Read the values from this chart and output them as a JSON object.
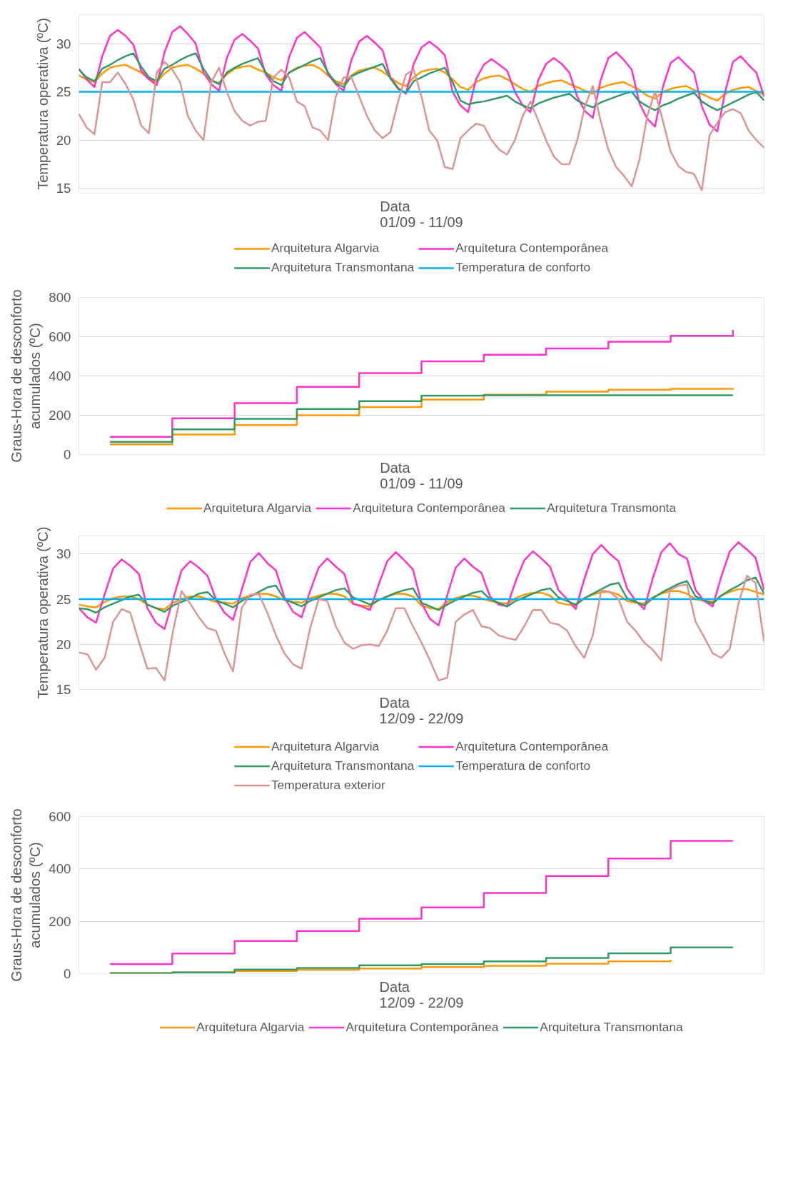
{
  "chart_data": [
    {
      "type": "line",
      "xlabel": "Data\n01/09 - 11/09",
      "ylabel": "Temperatura operativa (ºC)",
      "grid": "y",
      "legend": "bottom",
      "tick_labels": "y",
      "ylim": [
        14.5,
        33
      ],
      "yticks": [
        15,
        20,
        25,
        30
      ],
      "categories": [
        null,
        null,
        null,
        null,
        null,
        null,
        null,
        null,
        null,
        null,
        null,
        null,
        null,
        null,
        null,
        null,
        null,
        null,
        null,
        null,
        null,
        null,
        null,
        null,
        null,
        null,
        null,
        null,
        null,
        null,
        null,
        null,
        null,
        null,
        null,
        null,
        null,
        null,
        null,
        null,
        null,
        null,
        null,
        null,
        null,
        null,
        null,
        null,
        null,
        null,
        null,
        null,
        null,
        null,
        null,
        null,
        null,
        null,
        null,
        null,
        null,
        null,
        null,
        null,
        null,
        null,
        null,
        null,
        null,
        null,
        null,
        null,
        null,
        null,
        null,
        null,
        null,
        null,
        null,
        null,
        null,
        null,
        null,
        null,
        null,
        null,
        null,
        null,
        null
      ],
      "series": [
        {
          "name": "Arquitetura Algarvia",
          "color": "#ff9900",
          "values": [
            26.7,
            26.3,
            26.0,
            26.9,
            27.5,
            27.7,
            27.8,
            27.4,
            27.0,
            26.3,
            26.0,
            26.9,
            27.5,
            27.7,
            27.8,
            27.4,
            26.9,
            26.2,
            25.9,
            26.8,
            27.4,
            27.6,
            27.7,
            27.3,
            27.0,
            26.5,
            26.2,
            27.0,
            27.5,
            27.7,
            27.8,
            27.4,
            26.7,
            26.1,
            25.8,
            26.7,
            27.2,
            27.4,
            27.5,
            27.1,
            26.5,
            25.9,
            25.6,
            26.5,
            27.1,
            27.3,
            27.4,
            27.0,
            26.3,
            25.5,
            25.2,
            26.0,
            26.4,
            26.6,
            26.7,
            26.3,
            25.8,
            25.3,
            25.0,
            25.6,
            25.9,
            26.1,
            26.2,
            25.8,
            25.5,
            25.1,
            24.8,
            25.4,
            25.7,
            25.9,
            26.0,
            25.6,
            25.2,
            24.6,
            24.3,
            25.0,
            25.3,
            25.5,
            25.6,
            25.2,
            24.8,
            24.4,
            24.1,
            24.8,
            25.2,
            25.4,
            25.5,
            25.1,
            24.7
          ]
        },
        {
          "name": "Arquitetura Contemporânea",
          "color": "#ff33cc",
          "values": [
            27.4,
            26.3,
            25.5,
            28.7,
            30.8,
            31.4,
            30.8,
            29.9,
            27.2,
            26.3,
            25.7,
            29.1,
            31.2,
            31.8,
            31.0,
            30.0,
            27.0,
            25.8,
            25.1,
            28.5,
            30.4,
            31.0,
            30.3,
            29.5,
            26.8,
            25.7,
            25.1,
            28.6,
            30.6,
            31.2,
            30.4,
            29.6,
            26.8,
            25.8,
            25.1,
            28.3,
            30.2,
            30.8,
            30.1,
            29.3,
            26.5,
            25.4,
            24.8,
            27.9,
            29.6,
            30.2,
            29.6,
            28.8,
            25.0,
            23.6,
            22.9,
            26.3,
            27.8,
            28.4,
            27.8,
            27.2,
            25.0,
            23.6,
            22.9,
            26.2,
            27.9,
            28.5,
            27.9,
            27.0,
            24.5,
            23.0,
            22.3,
            26.2,
            28.5,
            29.1,
            28.3,
            27.3,
            23.8,
            22.2,
            21.4,
            25.5,
            28.0,
            28.6,
            27.8,
            27.0,
            23.5,
            21.6,
            20.9,
            25.0,
            28.1,
            28.7,
            27.8,
            27.0,
            24.5
          ]
        },
        {
          "name": "Arquitetura Transmontana",
          "color": "#339966",
          "values": [
            27.3,
            26.5,
            26.1,
            27.4,
            27.8,
            28.3,
            28.7,
            29.0,
            27.6,
            26.5,
            26.1,
            27.4,
            27.8,
            28.3,
            28.7,
            29.0,
            27.4,
            26.2,
            25.8,
            27.0,
            27.5,
            27.9,
            28.2,
            28.5,
            27.0,
            26.1,
            25.7,
            27.0,
            27.4,
            27.8,
            28.2,
            28.5,
            27.0,
            25.9,
            25.5,
            26.6,
            27.0,
            27.3,
            27.6,
            27.9,
            26.4,
            25.3,
            24.9,
            26.1,
            26.5,
            26.9,
            27.2,
            27.5,
            26.0,
            24.1,
            23.7,
            23.9,
            24.0,
            24.2,
            24.4,
            24.6,
            24.0,
            23.6,
            23.3,
            23.8,
            24.1,
            24.4,
            24.6,
            24.8,
            24.1,
            23.7,
            23.4,
            23.9,
            24.2,
            24.5,
            24.8,
            25.0,
            24.0,
            23.5,
            23.1,
            23.6,
            23.9,
            24.3,
            24.6,
            24.9,
            24.0,
            23.5,
            23.1,
            23.5,
            23.9,
            24.3,
            24.7,
            25.0,
            24.1
          ]
        },
        {
          "name": "Temperatura de conforto",
          "color": "#00b0f0",
          "values": [
            25,
            25,
            25,
            25,
            25,
            25,
            25,
            25,
            25,
            25,
            25,
            25,
            25,
            25,
            25,
            25,
            25,
            25,
            25,
            25,
            25,
            25,
            25,
            25,
            25,
            25,
            25,
            25,
            25,
            25,
            25,
            25,
            25,
            25,
            25,
            25,
            25,
            25,
            25,
            25,
            25,
            25,
            25,
            25,
            25,
            25,
            25,
            25,
            25,
            25,
            25,
            25,
            25,
            25,
            25,
            25,
            25,
            25,
            25,
            25,
            25,
            25,
            25,
            25,
            25,
            25,
            25,
            25,
            25,
            25,
            25,
            25,
            25,
            25,
            25,
            25,
            25,
            25,
            25,
            25,
            25,
            25,
            25,
            25,
            25,
            25,
            25,
            25,
            25
          ]
        },
        {
          "color": "#d99694",
          "values": [
            22.7,
            21.3,
            20.6,
            26.0,
            26.0,
            27.0,
            25.8,
            24.2,
            21.5,
            20.7,
            27.0,
            28.1,
            27.3,
            26.0,
            22.5,
            21.0,
            20.0,
            26.0,
            27.5,
            25.0,
            23.0,
            22.0,
            21.5,
            21.9,
            22.0,
            26.5,
            27.3,
            26.5,
            24.0,
            23.5,
            21.3,
            21.0,
            20.0,
            24.5,
            26.5,
            26.5,
            24.5,
            22.5,
            21.0,
            20.2,
            20.8,
            24.0,
            26.8,
            27.3,
            24.5,
            21.0,
            20.0,
            17.2,
            17.0,
            20.2,
            21.0,
            21.7,
            21.5,
            20.0,
            19.0,
            18.5,
            20.0,
            22.5,
            24.0,
            22.0,
            20.0,
            18.3,
            17.5,
            17.5,
            20.0,
            23.5,
            25.6,
            22.0,
            19.0,
            17.2,
            16.3,
            15.2,
            18.0,
            22.5,
            25.0,
            22.0,
            18.8,
            17.3,
            16.7,
            16.5,
            14.8,
            20.5,
            21.8,
            22.9,
            23.2,
            22.8,
            21.0,
            20.0,
            19.2
          ]
        }
      ]
    },
    {
      "type": "step",
      "xlabel": "Data\n01/09 - 11/09",
      "ylabel": "Graus-Hora de desconforto acumulados (ºC)",
      "grid": "y",
      "legend": "bottom",
      "tick_labels": "y",
      "ylim": [
        0,
        800
      ],
      "yticks": [
        0,
        200,
        400,
        600,
        800
      ],
      "categories": [
        null,
        null,
        null,
        null,
        null,
        null,
        null,
        null,
        null,
        null,
        null
      ],
      "series": [
        {
          "name": "Arquitetura Algarvia",
          "color": "#ff9900",
          "values": [
            52,
            102,
            150,
            200,
            242,
            280,
            305,
            320,
            330,
            335,
            338
          ]
        },
        {
          "name": "Arquitetura Contemporânea",
          "color": "#ff33cc",
          "values": [
            90,
            185,
            262,
            345,
            415,
            475,
            508,
            540,
            575,
            605,
            635
          ]
        },
        {
          "name": "Arquitetura Transmonta",
          "color": "#339966",
          "values": [
            65,
            128,
            182,
            232,
            272,
            300,
            302,
            302,
            302,
            302,
            302
          ]
        }
      ]
    },
    {
      "type": "line",
      "xlabel": "Data\n12/09 - 22/09",
      "ylabel": "Temperatura operativa (ºC)",
      "grid": "y",
      "legend": "bottom",
      "tick_labels": "y",
      "ylim": [
        15,
        32
      ],
      "yticks": [
        15,
        20,
        25,
        30
      ],
      "categories": [
        null,
        null,
        null,
        null,
        null,
        null,
        null,
        null,
        null,
        null,
        null,
        null,
        null,
        null,
        null,
        null,
        null,
        null,
        null,
        null,
        null,
        null,
        null,
        null,
        null,
        null,
        null,
        null,
        null,
        null,
        null,
        null,
        null,
        null,
        null,
        null,
        null,
        null,
        null,
        null,
        null,
        null,
        null,
        null,
        null,
        null,
        null,
        null,
        null,
        null,
        null,
        null,
        null,
        null,
        null,
        null,
        null,
        null,
        null,
        null,
        null,
        null,
        null,
        null,
        null,
        null,
        null,
        null,
        null,
        null,
        null,
        null,
        null,
        null,
        null,
        null,
        null,
        null,
        null,
        null,
        null
      ],
      "series": [
        {
          "name": "Arquitetura Algarvia",
          "color": "#ff9900",
          "values": [
            24.4,
            24.2,
            24.1,
            24.7,
            25.1,
            25.3,
            25.3,
            25.0,
            24.4,
            24.0,
            23.9,
            24.6,
            25.0,
            25.3,
            25.3,
            25.0,
            24.7,
            24.6,
            24.5,
            25.1,
            25.4,
            25.6,
            25.6,
            25.3,
            24.9,
            24.7,
            24.6,
            25.1,
            25.4,
            25.6,
            25.6,
            25.3,
            24.5,
            24.3,
            24.2,
            24.9,
            25.3,
            25.6,
            25.6,
            25.3,
            24.3,
            24.0,
            23.9,
            24.7,
            25.1,
            25.4,
            25.4,
            25.1,
            24.8,
            24.6,
            24.5,
            25.1,
            25.5,
            25.7,
            25.7,
            25.4,
            24.6,
            24.4,
            24.3,
            25.1,
            25.5,
            25.8,
            25.8,
            25.5,
            24.8,
            24.6,
            24.5,
            25.2,
            25.6,
            25.9,
            25.9,
            25.6,
            25.0,
            24.8,
            24.7,
            25.4,
            25.8,
            26.1,
            26.1,
            25.8,
            25.5
          ]
        },
        {
          "name": "Arquitetura Contemporânea",
          "color": "#ff33cc",
          "values": [
            24.0,
            23.0,
            22.4,
            25.5,
            28.4,
            29.4,
            28.7,
            27.8,
            24.0,
            22.4,
            21.7,
            25.0,
            28.2,
            29.2,
            28.5,
            27.6,
            25.0,
            23.5,
            22.7,
            26.0,
            29.1,
            30.1,
            29.0,
            28.2,
            25.2,
            23.6,
            23.0,
            25.9,
            28.5,
            29.5,
            28.6,
            27.8,
            24.5,
            24.2,
            23.8,
            26.6,
            29.2,
            30.2,
            29.3,
            28.3,
            24.6,
            22.8,
            22.1,
            25.4,
            28.5,
            29.5,
            28.6,
            27.9,
            25.3,
            24.4,
            24.2,
            27.0,
            29.3,
            30.3,
            29.5,
            28.6,
            26.0,
            25.0,
            23.9,
            27.2,
            30.0,
            31.0,
            30.0,
            29.2,
            26.2,
            24.8,
            23.9,
            27.3,
            30.2,
            31.2,
            30.0,
            29.5,
            26.0,
            24.8,
            24.2,
            27.5,
            30.3,
            31.3,
            30.5,
            29.6,
            26.0
          ]
        },
        {
          "name": "Arquitetura Transmontana",
          "color": "#339966",
          "values": [
            24.0,
            23.9,
            23.5,
            24.1,
            24.5,
            24.9,
            25.3,
            25.5,
            24.4,
            24.0,
            23.6,
            24.3,
            24.7,
            25.1,
            25.6,
            25.8,
            24.9,
            24.5,
            24.1,
            24.8,
            25.3,
            25.8,
            26.3,
            26.5,
            25.0,
            24.6,
            24.2,
            24.8,
            25.2,
            25.6,
            26.0,
            26.2,
            25.2,
            24.8,
            24.4,
            24.9,
            25.3,
            25.7,
            26.0,
            26.2,
            24.6,
            24.2,
            23.8,
            24.4,
            24.9,
            25.3,
            25.7,
            25.9,
            25.0,
            24.6,
            24.2,
            24.8,
            25.2,
            25.6,
            26.0,
            26.2,
            25.2,
            24.8,
            24.4,
            25.1,
            25.6,
            26.1,
            26.6,
            26.8,
            25.1,
            24.7,
            24.3,
            25.1,
            25.7,
            26.2,
            26.7,
            27.0,
            25.3,
            24.9,
            24.5,
            25.4,
            26.0,
            26.5,
            27.1,
            27.4,
            25.6
          ]
        },
        {
          "name": "Temperatura de conforto",
          "color": "#00b0f0",
          "values": [
            25,
            25,
            25,
            25,
            25,
            25,
            25,
            25,
            25,
            25,
            25,
            25,
            25,
            25,
            25,
            25,
            25,
            25,
            25,
            25,
            25,
            25,
            25,
            25,
            25,
            25,
            25,
            25,
            25,
            25,
            25,
            25,
            25,
            25,
            25,
            25,
            25,
            25,
            25,
            25,
            25,
            25,
            25,
            25,
            25,
            25,
            25,
            25,
            25,
            25,
            25,
            25,
            25,
            25,
            25,
            25,
            25,
            25,
            25,
            25,
            25,
            25,
            25,
            25,
            25,
            25,
            25,
            25,
            25,
            25,
            25,
            25,
            25,
            25,
            25,
            25,
            25,
            25,
            25,
            25,
            25
          ]
        },
        {
          "name": "Temperatura exterior",
          "color": "#d99694",
          "values": [
            19.1,
            18.9,
            17.2,
            18.5,
            22.5,
            23.9,
            23.5,
            20.3,
            17.3,
            17.4,
            16.0,
            21.5,
            25.9,
            24.5,
            23.0,
            21.8,
            21.5,
            19.0,
            17.0,
            24.0,
            25.5,
            25.6,
            23.5,
            21.0,
            19.0,
            17.8,
            17.3,
            21.8,
            25.0,
            24.8,
            22.0,
            20.2,
            19.5,
            19.9,
            20.0,
            19.8,
            21.5,
            24.0,
            24.0,
            22.0,
            20.2,
            18.2,
            16.0,
            16.3,
            22.5,
            23.3,
            23.8,
            22.0,
            21.8,
            21.0,
            20.7,
            20.5,
            22.0,
            23.8,
            23.8,
            22.4,
            22.2,
            21.5,
            19.8,
            18.5,
            21.0,
            26.0,
            25.8,
            25.0,
            22.5,
            21.5,
            20.2,
            19.4,
            18.2,
            26.0,
            26.5,
            26.6,
            22.5,
            20.8,
            19.0,
            18.5,
            19.5,
            24.5,
            27.6,
            26.8,
            20.3
          ]
        }
      ]
    },
    {
      "type": "step",
      "xlabel": "Data\n12/09 - 22/09",
      "ylabel": "Graus-Hora de desconforto acumulados (ºC)",
      "grid": "y",
      "legend": "bottom",
      "tick_labels": "y",
      "ylim": [
        0,
        600
      ],
      "yticks": [
        0,
        200,
        400,
        600
      ],
      "categories": [
        null,
        null,
        null,
        null,
        null,
        null,
        null,
        null,
        null,
        null,
        null
      ],
      "series": [
        {
          "name": "Arquitetura Algarvia",
          "color": "#ff9900",
          "values": [
            2,
            5,
            10,
            15,
            20,
            25,
            30,
            38,
            47,
            53,
            null
          ]
        },
        {
          "name": "Arquitetura Contemporânea",
          "color": "#ff33cc",
          "values": [
            37,
            77,
            125,
            163,
            210,
            253,
            308,
            373,
            440,
            507,
            507
          ]
        },
        {
          "name": "Arquitetura Transmontana",
          "color": "#339966",
          "values": [
            2,
            5,
            16,
            22,
            32,
            37,
            47,
            60,
            78,
            100,
            100
          ]
        }
      ]
    }
  ]
}
